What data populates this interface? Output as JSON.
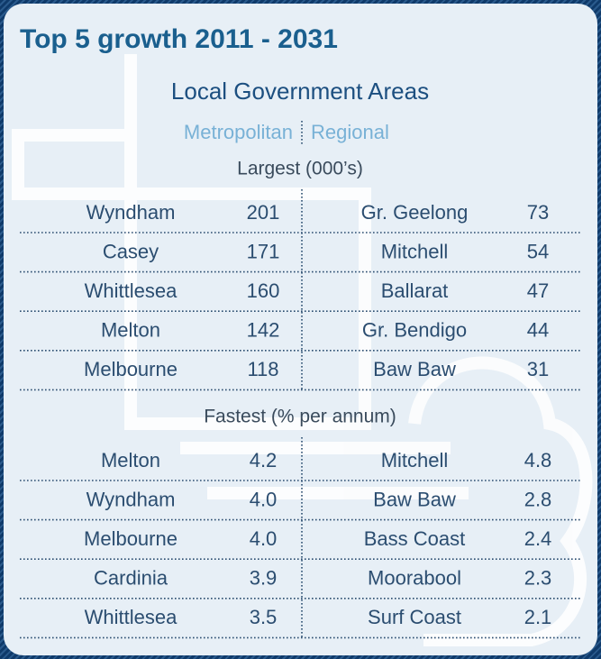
{
  "title": "Top 5 growth 2011 - 2031",
  "subtitle": "Local Government Areas",
  "column_headers": [
    "Metropolitan",
    "Regional"
  ],
  "sections": [
    {
      "heading": "Largest (000’s)",
      "rows": [
        [
          "Wyndham",
          "201",
          "Gr. Geelong",
          "73"
        ],
        [
          "Casey",
          "171",
          "Mitchell",
          "54"
        ],
        [
          "Whittlesea",
          "160",
          "Ballarat",
          "47"
        ],
        [
          "Melton",
          "142",
          "Gr. Bendigo",
          "44"
        ],
        [
          "Melbourne",
          "118",
          "Baw Baw",
          "31"
        ]
      ]
    },
    {
      "heading": "Fastest (% per annum)",
      "rows": [
        [
          "Melton",
          "4.2",
          "Mitchell",
          "4.8"
        ],
        [
          "Wyndham",
          "4.0",
          "Baw Baw",
          "2.8"
        ],
        [
          "Melbourne",
          "4.0",
          "Bass Coast",
          "2.4"
        ],
        [
          "Cardinia",
          "3.9",
          "Moorabool",
          "2.3"
        ],
        [
          "Whittlesea",
          "3.5",
          "Surf Coast",
          "2.1"
        ]
      ]
    }
  ]
}
